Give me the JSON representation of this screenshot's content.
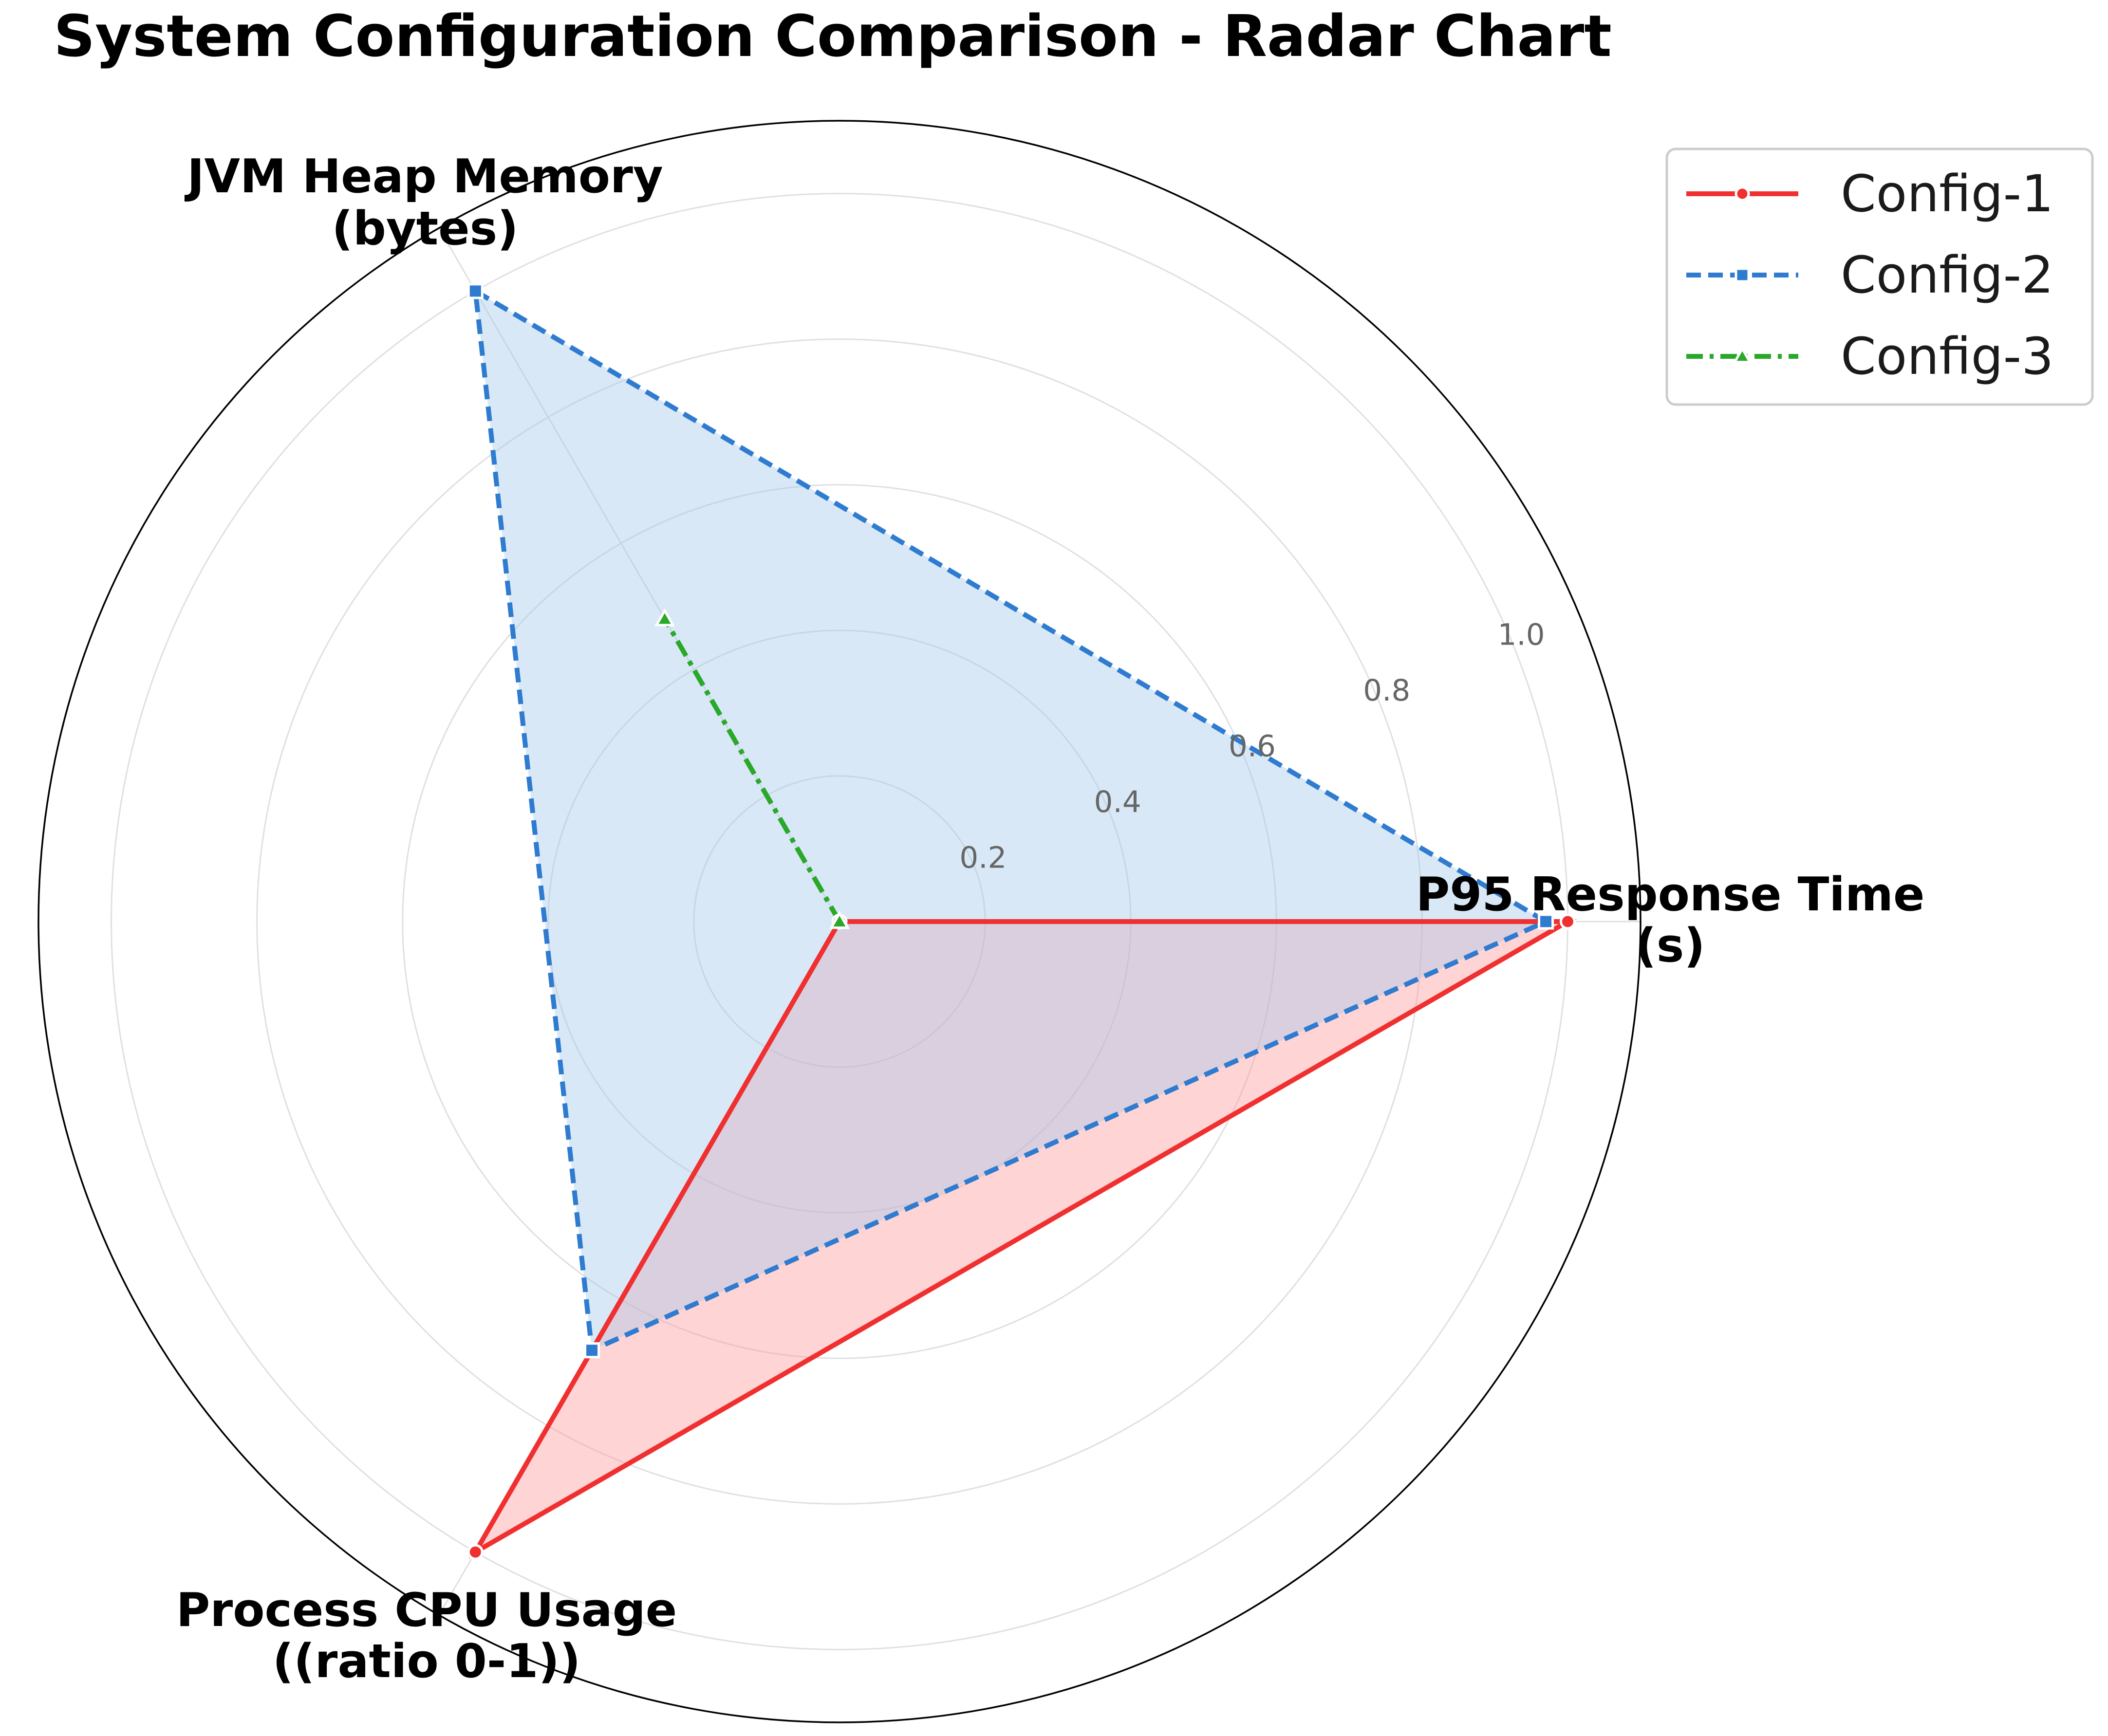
{
  "chart_data": {
    "type": "radar",
    "title": "System Configuration Comparison - Radar Chart",
    "axes": [
      {
        "line1": "P95 Response Time",
        "line2": "(s)"
      },
      {
        "line1": "JVM Heap Memory",
        "line2": "(bytes)"
      },
      {
        "line1": "Process CPU Usage",
        "line2": "((ratio 0-1))"
      }
    ],
    "rlim": [
      0,
      1.1
    ],
    "rticks": [
      0.2,
      0.4,
      0.6,
      0.8,
      1.0
    ],
    "rtick_labels": [
      "0.2",
      "0.4",
      "0.6",
      "0.8",
      "1.0"
    ],
    "grid": true,
    "legend_position": "top-right",
    "series": [
      {
        "name": "Config-1",
        "values": [
          1.0,
          0.0,
          1.0
        ],
        "color": "#f03030",
        "fill": "#ff9999",
        "line_style": "solid",
        "marker": "circle"
      },
      {
        "name": "Config-2",
        "values": [
          0.97,
          1.0,
          0.68
        ],
        "color": "#2e7bd0",
        "fill": "#a5c8ec",
        "line_style": "dashed",
        "marker": "square"
      },
      {
        "name": "Config-3",
        "values": [
          0.0,
          0.48,
          0.0
        ],
        "color": "#2aa82a",
        "fill": "#aadcaa",
        "line_style": "dashdot",
        "marker": "triangle"
      }
    ]
  }
}
